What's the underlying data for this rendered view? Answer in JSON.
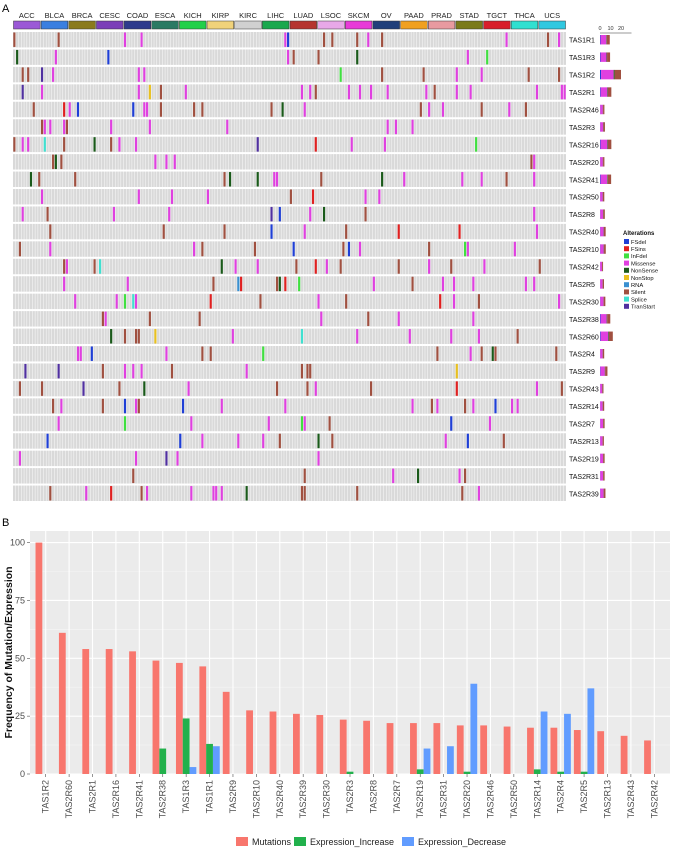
{
  "panel_a_label": "A",
  "panel_b_label": "B",
  "chart_data": [
    {
      "type": "heatmap",
      "panel": "A",
      "cancer_types": [
        "ACC",
        "BLCA",
        "BRCA",
        "CESC",
        "COAD",
        "ESCA",
        "KICH",
        "KIRP",
        "KIRC",
        "LIHC",
        "LUAD",
        "LSOC",
        "SKCM",
        "OV",
        "PAAD",
        "PRAD",
        "STAD",
        "TGCT",
        "THCA",
        "UCS"
      ],
      "cancer_colors": [
        "#9b59d6",
        "#3a7fe0",
        "#8a7a1c",
        "#7b3fb8",
        "#2e3b8c",
        "#2a7a63",
        "#22d04a",
        "#f0d27a",
        "#d0d0d0",
        "#1aa84e",
        "#b5342f",
        "#e8a8e8",
        "#e83bd8",
        "#1f3f7a",
        "#f0a020",
        "#e89aa0",
        "#7a7a1a",
        "#d81e2a",
        "#30e0d0",
        "#30c8e0"
      ],
      "genes": [
        "TAS1R1",
        "TAS1R3",
        "TAS1R2",
        "TAS2R1",
        "TAS2R46",
        "TAS2R3",
        "TAS2R16",
        "TAS2R20",
        "TAS2R41",
        "TAS2R50",
        "TAS2R8",
        "TAS2R40",
        "TAS2R10",
        "TAS2R42",
        "TAS2R5",
        "TAS2R30",
        "TAS2R38",
        "TAS2R60",
        "TAS2R4",
        "TAS2R9",
        "TAS2R43",
        "TAS2R14",
        "TAS2R7",
        "TAS2R13",
        "TAS2R19",
        "TAS2R31",
        "TAS2R39"
      ],
      "side_axis_ticks": [
        "0",
        "10",
        "20"
      ],
      "legend_title": "Alterations",
      "alterations": [
        {
          "name": "FSdel",
          "color": "#1f3fd6"
        },
        {
          "name": "FSins",
          "color": "#e02020"
        },
        {
          "name": "InFdel",
          "color": "#40e040"
        },
        {
          "name": "Missense",
          "color": "#e040e0"
        },
        {
          "name": "NonSense",
          "color": "#1a5a1a"
        },
        {
          "name": "NonStop",
          "color": "#e8c020"
        },
        {
          "name": "RNA",
          "color": "#3a90d0"
        },
        {
          "name": "Silent",
          "color": "#a05040"
        },
        {
          "name": "Splice",
          "color": "#40e0d0"
        },
        {
          "name": "TranStart",
          "color": "#5030a0"
        }
      ]
    },
    {
      "type": "bar",
      "panel": "B",
      "categories": [
        "TAS1R2",
        "TAS2R60",
        "TAS2R1",
        "TAS2R16",
        "TAS2R41",
        "TAS2R38",
        "TAS1R3",
        "TAS1R1",
        "TAS2R9",
        "TAS2R10",
        "TAS2R40",
        "TAS2R39",
        "TAS2R30",
        "TAS2R3",
        "TAS2R8",
        "TAS2R7",
        "TAS2R19",
        "TAS2R31",
        "TAS2R20",
        "TAS2R46",
        "TAS2R50",
        "TAS2R14",
        "TAS2R4",
        "TAS2R5",
        "TAS2R13",
        "TAS2R43",
        "TAS2R42"
      ],
      "series": [
        {
          "name": "Mutations",
          "color": "#f8766d",
          "values": [
            100,
            61,
            54,
            54,
            53,
            49,
            48,
            46.5,
            35.5,
            27.5,
            27,
            26,
            25.5,
            23.5,
            23,
            22,
            22,
            22,
            21,
            21,
            20.5,
            20,
            20,
            19,
            18.5,
            16.5,
            14.5
          ]
        },
        {
          "name": "Expression_Increase",
          "color": "#22b14c",
          "values": [
            0,
            0,
            0,
            0,
            0,
            11,
            24,
            13,
            0,
            0,
            0,
            0,
            0,
            1,
            0,
            0,
            2,
            0,
            1,
            0,
            0,
            2,
            1,
            1,
            0,
            0,
            0
          ]
        },
        {
          "name": "Expression_Decrease",
          "color": "#619cff",
          "values": [
            0,
            0,
            0,
            0,
            0,
            0,
            3,
            12,
            0,
            0,
            0,
            0,
            0,
            0,
            0,
            0,
            11,
            12,
            39,
            0,
            0,
            27,
            26,
            37,
            0,
            0,
            0
          ]
        }
      ],
      "ylabel": "Frequency of Mutation/Expression",
      "xlabel": "",
      "ylim": [
        0,
        105
      ],
      "yticks": [
        0,
        25,
        50,
        75,
        100
      ],
      "grid": true,
      "legend_position": "bottom"
    }
  ]
}
